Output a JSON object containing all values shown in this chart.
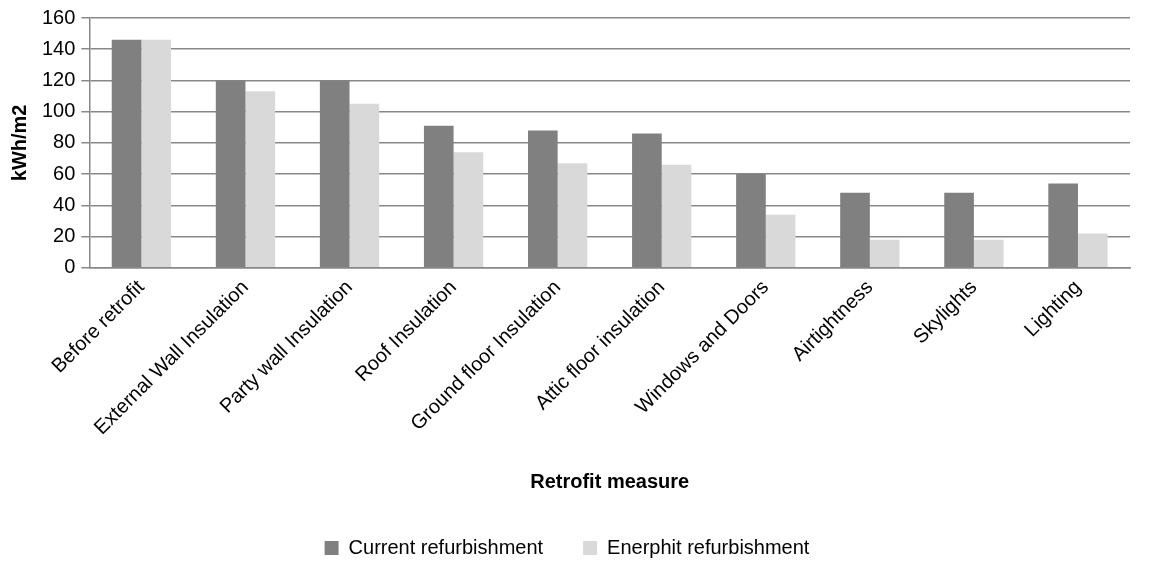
{
  "chart_data": {
    "type": "bar",
    "xlabel": "Retrofit measure",
    "ylabel": "kWh/m2",
    "categories": [
      "Before retrofit",
      "External Wall Insulation",
      "Party wall Insulation",
      "Roof Insulation",
      "Ground floor Insulation",
      "Attic floor insulation",
      "Windows and Doors",
      "Airtightness",
      "Skylights",
      "Lighting"
    ],
    "series": [
      {
        "name": "Current refurbishment",
        "color": "#808080",
        "values": [
          146,
          120,
          120,
          91,
          88,
          86,
          60,
          48,
          48,
          54
        ]
      },
      {
        "name": "Enerphit refurbishment",
        "color": "#d9d9d9",
        "values": [
          146,
          113,
          105,
          74,
          67,
          66,
          34,
          18,
          18,
          22
        ]
      }
    ],
    "ylim": [
      0,
      160
    ],
    "yticks": [
      0,
      20,
      40,
      60,
      80,
      100,
      120,
      140,
      160
    ],
    "grid": "y",
    "legend": "bottom"
  }
}
